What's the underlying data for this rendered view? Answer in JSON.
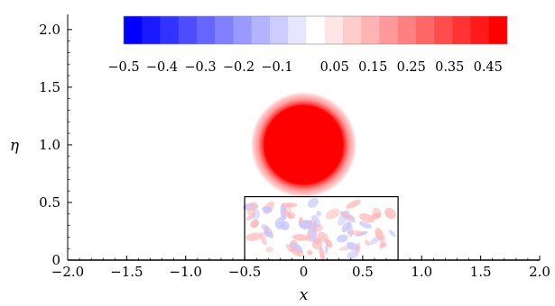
{
  "chart_data": {
    "type": "heatmap",
    "title": "",
    "xlabel": "x",
    "ylabel": "η",
    "xlim": [
      -2.0,
      2.0
    ],
    "ylim": [
      0,
      2.1
    ],
    "x_ticks": [
      "−2.0",
      "−1.5",
      "−1.0",
      "−0.5",
      "0",
      "0.5",
      "1.0",
      "1.5",
      "2.0"
    ],
    "x_tick_values": [
      -2.0,
      -1.5,
      -1.0,
      -0.5,
      0,
      0.5,
      1.0,
      1.5,
      2.0
    ],
    "y_ticks": [
      "0",
      "0.5",
      "1.0",
      "1.5",
      "2.0"
    ],
    "y_tick_values": [
      0,
      0.5,
      1.0,
      1.5,
      2.0
    ],
    "colorbar": {
      "placement": "top",
      "range": [
        -0.5,
        0.5
      ],
      "levels": 21,
      "colors": [
        "#0000ff",
        "#1a1aff",
        "#3333ff",
        "#4d4dff",
        "#6666ff",
        "#8080ff",
        "#9999ff",
        "#b3b3ff",
        "#ccccff",
        "#e6e6ff",
        "#ffffff",
        "#ffe6e6",
        "#ffcccc",
        "#ffb3b3",
        "#ff9999",
        "#ff8080",
        "#ff6666",
        "#ff4d4d",
        "#ff3333",
        "#ff1a1a",
        "#ff0000"
      ],
      "labels": [
        "−0.5",
        "−0.4",
        "−0.3",
        "−0.2",
        "−0.1",
        "0.05",
        "0.15",
        "0.25",
        "0.35",
        "0.45"
      ],
      "label_values": [
        -0.5,
        -0.4,
        -0.3,
        -0.2,
        -0.1,
        0.05,
        0.15,
        0.25,
        0.35,
        0.45
      ]
    },
    "features": {
      "vortex": {
        "center": [
          0.0,
          1.0
        ],
        "core_radius": 0.36,
        "halo_radius": 0.47,
        "value": 0.5
      },
      "box": {
        "x": [
          -0.5,
          0.8
        ],
        "y": [
          0,
          0.55
        ]
      }
    }
  }
}
